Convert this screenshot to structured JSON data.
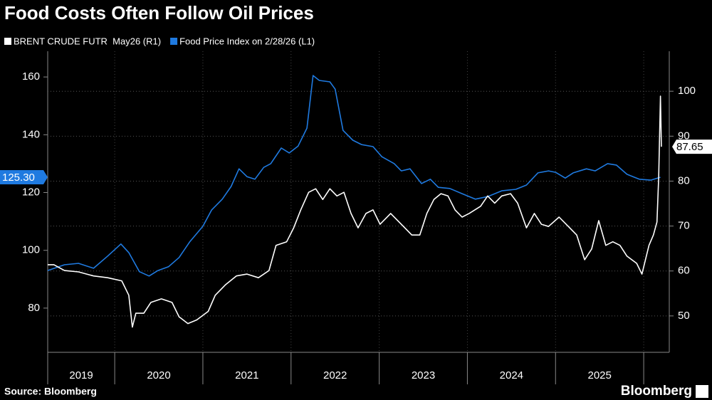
{
  "chart_data": {
    "type": "line",
    "title": "Food Costs Often Follow Oil Prices",
    "source": "Source: Bloomberg",
    "logo": "Bloomberg",
    "categories": [
      "2019",
      "2020",
      "2021",
      "2022",
      "2023",
      "2024",
      "2025"
    ],
    "xlim": [
      2019.24,
      2026.29
    ],
    "xticks": [
      2020,
      2021,
      2022,
      2023,
      2024,
      2025,
      2026
    ],
    "ylim": [
      64.7,
      168.9
    ],
    "yticks": [
      80,
      100,
      120,
      140,
      160
    ],
    "y2lim": [
      41.9,
      108.9
    ],
    "y2ticks": [
      50,
      60,
      70,
      80,
      90,
      100
    ],
    "grid": true,
    "series": [
      {
        "name": "BRENT CRUDE FUTR  May26 (R1)",
        "color": "#ffffff",
        "axis": "y2",
        "x": [
          2019.24,
          2019.31,
          2019.43,
          2019.59,
          2019.76,
          2019.92,
          2020.08,
          2020.16,
          2020.2,
          2020.24,
          2020.33,
          2020.41,
          2020.53,
          2020.65,
          2020.73,
          2020.83,
          2020.93,
          2021.06,
          2021.14,
          2021.26,
          2021.38,
          2021.5,
          2021.63,
          2021.75,
          2021.83,
          2021.95,
          2022.03,
          2022.11,
          2022.2,
          2022.28,
          2022.36,
          2022.44,
          2022.52,
          2022.6,
          2022.68,
          2022.76,
          2022.85,
          2022.93,
          2023.01,
          2023.13,
          2023.25,
          2023.37,
          2023.46,
          2023.54,
          2023.62,
          2023.7,
          2023.78,
          2023.86,
          2023.94,
          2024.02,
          2024.15,
          2024.23,
          2024.31,
          2024.39,
          2024.49,
          2024.57,
          2024.67,
          2024.76,
          2024.84,
          2024.92,
          2025.04,
          2025.16,
          2025.24,
          2025.33,
          2025.41,
          2025.49,
          2025.57,
          2025.65,
          2025.73,
          2025.81,
          2025.92,
          2025.98,
          2026.06,
          2026.11,
          2026.15,
          2026.17,
          2026.19,
          2026.2
        ],
        "values": [
          61.4,
          61.4,
          60.1,
          59.8,
          58.9,
          58.5,
          57.8,
          54.6,
          47.5,
          50.6,
          50.6,
          53.0,
          53.8,
          53.0,
          49.8,
          48.3,
          49.1,
          51.0,
          54.6,
          57.0,
          58.9,
          59.3,
          58.5,
          60.1,
          65.7,
          66.5,
          69.6,
          73.6,
          77.5,
          78.3,
          75.9,
          78.3,
          76.7,
          77.5,
          72.8,
          69.6,
          72.8,
          73.6,
          70.4,
          72.8,
          70.4,
          68.0,
          68.0,
          72.8,
          75.9,
          77.2,
          76.7,
          73.6,
          72.0,
          72.8,
          74.4,
          76.7,
          75.1,
          76.7,
          77.2,
          75.1,
          69.6,
          72.8,
          70.4,
          69.9,
          72.0,
          69.6,
          68.0,
          62.5,
          64.9,
          71.2,
          65.7,
          66.5,
          65.7,
          63.3,
          61.7,
          59.3,
          65.7,
          68.0,
          70.9,
          80.7,
          98.9,
          87.65
        ]
      },
      {
        "name": "Food Price Index on 2/28/26 (L1)",
        "color": "#1f7ae0",
        "axis": "y",
        "x": [
          2019.24,
          2019.43,
          2019.59,
          2019.76,
          2019.92,
          2020.07,
          2020.16,
          2020.28,
          2020.39,
          2020.49,
          2020.61,
          2020.73,
          2020.85,
          2021,
          2021.1,
          2021.22,
          2021.32,
          2021.41,
          2021.5,
          2021.59,
          2021.69,
          2021.77,
          2021.89,
          2021.98,
          2022.08,
          2022.18,
          2022.25,
          2022.32,
          2022.44,
          2022.5,
          2022.59,
          2022.7,
          2022.8,
          2022.93,
          2023.03,
          2023.17,
          2023.25,
          2023.35,
          2023.48,
          2023.58,
          2023.67,
          2023.8,
          2023.94,
          2024.09,
          2024.23,
          2024.39,
          2024.55,
          2024.67,
          2024.8,
          2024.92,
          2025,
          2025.11,
          2025.2,
          2025.35,
          2025.45,
          2025.59,
          2025.69,
          2025.81,
          2025.95,
          2026.08,
          2026.19
        ],
        "values": [
          93.0,
          95.0,
          95.5,
          93.8,
          98.0,
          102.2,
          99.2,
          92.6,
          91.1,
          93.0,
          94.3,
          97.5,
          102.9,
          108.3,
          114.0,
          117.7,
          122.1,
          128.2,
          125.5,
          124.6,
          128.7,
          130.0,
          135.4,
          133.7,
          136.1,
          142.3,
          160.5,
          158.8,
          158.3,
          155.8,
          141.5,
          138.1,
          136.6,
          135.9,
          132.4,
          130.0,
          127.5,
          128.2,
          123.1,
          124.6,
          121.8,
          121.4,
          119.6,
          117.7,
          118.6,
          120.6,
          121.1,
          122.6,
          126.8,
          127.5,
          127.0,
          125.0,
          126.8,
          128.2,
          127.5,
          130.0,
          129.5,
          126.3,
          124.6,
          124.3,
          125.3
        ],
        "value_labels": [
          null,
          null,
          null,
          null,
          null,
          null,
          null,
          null,
          null,
          null,
          null,
          null,
          null,
          null,
          null,
          null,
          null,
          null,
          null,
          null,
          null,
          null,
          null,
          null,
          null,
          null,
          null,
          null,
          null,
          null,
          null,
          null,
          null,
          null,
          null,
          null,
          null,
          null,
          null,
          null,
          null,
          null,
          null,
          null,
          null,
          null,
          null,
          null,
          null,
          null,
          null,
          null,
          null,
          null,
          null,
          null,
          null,
          null,
          null,
          null,
          "125.30"
        ]
      }
    ]
  }
}
